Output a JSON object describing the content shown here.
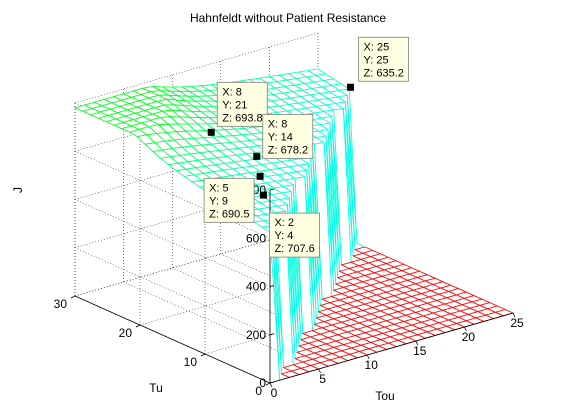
{
  "chart_data": {
    "type": "surface",
    "title": "Hahnfeldt without Patient Resistance",
    "xlabel": "Tou",
    "ylabel": "Tu",
    "zlabel": "J",
    "xlim": [
      0,
      25
    ],
    "ylim": [
      0,
      30
    ],
    "zlim": [
      0,
      800
    ],
    "x_ticks": [
      "0",
      "5",
      "10",
      "15",
      "20",
      "25"
    ],
    "y_ticks": [
      "0",
      "10",
      "20",
      "30"
    ],
    "z_ticks": [
      "0",
      "200",
      "400",
      "600",
      "800"
    ],
    "grid": true,
    "colormap": [
      "#ff0000",
      "#ff00ff",
      "#0000ff",
      "#00ffff",
      "#00ff00"
    ],
    "description_note": "J is near 0 where Tou > Tu and rises steeply to roughly 630-740 where Tou <= Tu.",
    "datatips": [
      {
        "lines": [
          "X: 25",
          "Y: 25",
          "Z: 635.2"
        ],
        "x": 25,
        "y": 25,
        "z": 635.2
      },
      {
        "lines": [
          "X: 8",
          "Y: 21",
          "Z: 693.8"
        ],
        "x": 8,
        "y": 21,
        "z": 693.8
      },
      {
        "lines": [
          "X: 8",
          "Y: 14",
          "Z: 678.2"
        ],
        "x": 8,
        "y": 14,
        "z": 678.2
      },
      {
        "lines": [
          "X: 5",
          "Y: 9",
          "Z: 690.5"
        ],
        "x": 5,
        "y": 9,
        "z": 690.5
      },
      {
        "lines": [
          "X: 2",
          "Y: 4",
          "Z: 707.6"
        ],
        "x": 2,
        "y": 4,
        "z": 707.6
      }
    ]
  }
}
